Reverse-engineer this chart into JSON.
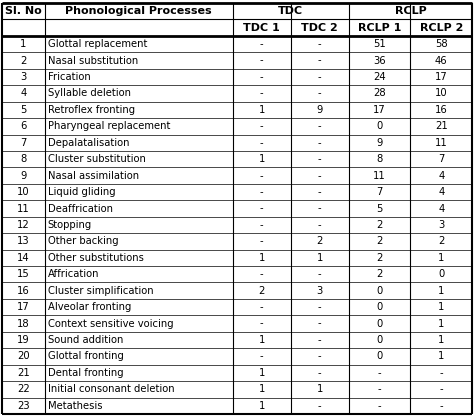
{
  "title_row_left": [
    "Sl. No",
    "Phonological Processes"
  ],
  "title_row_tdc": "TDC",
  "title_row_rclp": "RCLP",
  "sub_header": [
    "",
    "",
    "TDC 1",
    "TDC 2",
    "RCLP 1",
    "RCLP 2"
  ],
  "rows": [
    [
      "1",
      "Glottal replacement",
      "-",
      "-",
      "51",
      "58"
    ],
    [
      "2",
      "Nasal substitution",
      "-",
      "-",
      "36",
      "46"
    ],
    [
      "3",
      "Frication",
      "-",
      "-",
      "24",
      "17"
    ],
    [
      "4",
      "Syllable deletion",
      "-",
      "-",
      "28",
      "10"
    ],
    [
      "5",
      "Retroflex fronting",
      "1",
      "9",
      "17",
      "16"
    ],
    [
      "6",
      "Pharyngeal replacement",
      "-",
      "-",
      "0",
      "21"
    ],
    [
      "7",
      "Depalatalisation",
      "-",
      "-",
      "9",
      "11"
    ],
    [
      "8",
      "Cluster substitution",
      "1",
      "-",
      "8",
      "7"
    ],
    [
      "9",
      "Nasal assimilation",
      "-",
      "-",
      "11",
      "4"
    ],
    [
      "10",
      "Liquid gliding",
      "-",
      "-",
      "7",
      "4"
    ],
    [
      "11",
      "Deaffrication",
      "-",
      "-",
      "5",
      "4"
    ],
    [
      "12",
      "Stopping",
      "-",
      "-",
      "2",
      "3"
    ],
    [
      "13",
      "Other backing",
      "-",
      "2",
      "2",
      "2"
    ],
    [
      "14",
      "Other substitutions",
      "1",
      "1",
      "2",
      "1"
    ],
    [
      "15",
      "Affrication",
      "-",
      "-",
      "2",
      "0"
    ],
    [
      "16",
      "Cluster simplification",
      "2",
      "3",
      "0",
      "1"
    ],
    [
      "17",
      "Alveolar fronting",
      "-",
      "-",
      "0",
      "1"
    ],
    [
      "18",
      "Context sensitive voicing",
      "-",
      "-",
      "0",
      "1"
    ],
    [
      "19",
      "Sound addition",
      "1",
      "-",
      "0",
      "1"
    ],
    [
      "20",
      "Glottal fronting",
      "-",
      "-",
      "0",
      "1"
    ],
    [
      "21",
      "Dental fronting",
      "1",
      "-",
      "-",
      "-"
    ],
    [
      "22",
      "Initial consonant deletion",
      "1",
      "1",
      "-",
      "-"
    ],
    [
      "23",
      "Metathesis",
      "1",
      "-",
      "-",
      "-"
    ]
  ],
  "background_color": "#ffffff",
  "font_size": 7.2,
  "header_font_size": 8.0,
  "bold_font_size": 8.0
}
